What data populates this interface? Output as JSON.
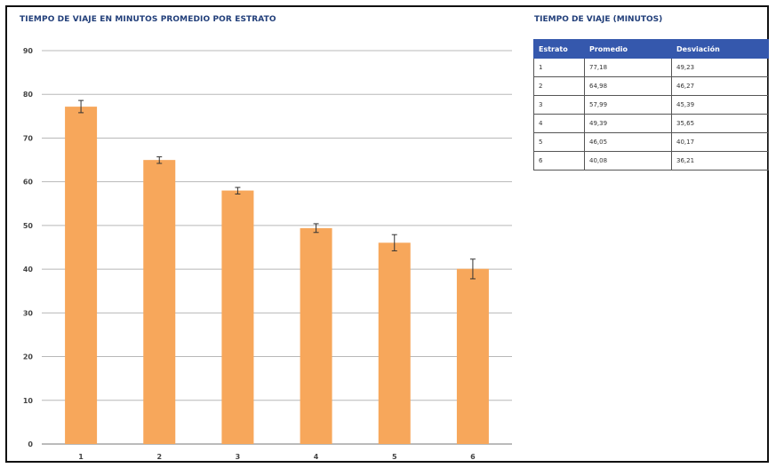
{
  "chart_data": {
    "type": "bar",
    "title": "TIEMPO DE VIAJE EN MINUTOS PROMEDIO POR ESTRATO",
    "categories": [
      "1",
      "2",
      "3",
      "4",
      "5",
      "6"
    ],
    "values": [
      77.18,
      64.98,
      57.99,
      49.39,
      46.05,
      40.08
    ],
    "error_low": [
      75.8,
      64.2,
      57.2,
      48.4,
      44.2,
      37.8
    ],
    "error_high": [
      78.6,
      65.7,
      58.7,
      50.4,
      47.9,
      42.3
    ],
    "ylim": [
      0,
      90
    ],
    "yticks": [
      0,
      10,
      20,
      30,
      40,
      50,
      60,
      70,
      80,
      90
    ],
    "grid": true,
    "bar_color": "#f7a75b",
    "grid_color": "#b8b8b8"
  },
  "table": {
    "title": "TIEMPO DE VIAJE (MINUTOS)",
    "headers": [
      "Estrato",
      "Promedio",
      "Desviación"
    ],
    "rows": [
      [
        "1",
        "77,18",
        "49,23"
      ],
      [
        "2",
        "64,98",
        "46,27"
      ],
      [
        "3",
        "57,99",
        "45,39"
      ],
      [
        "4",
        "49,39",
        "35,65"
      ],
      [
        "5",
        "46,05",
        "40,17"
      ],
      [
        "6",
        "40,08",
        "36,21"
      ]
    ]
  }
}
